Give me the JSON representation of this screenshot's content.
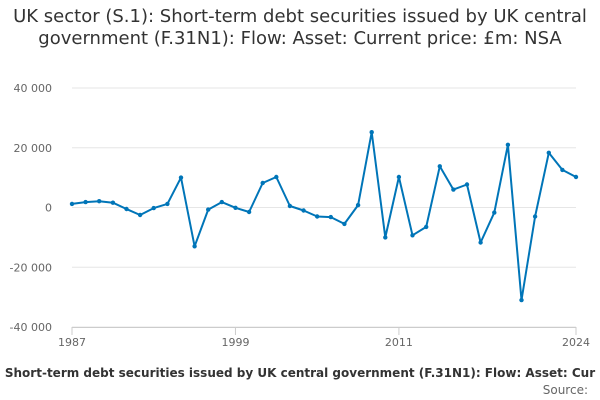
{
  "chart_data": {
    "type": "line",
    "title": "UK sector (S.1): Short-term debt securities issued by UK central government (F.31N1): Flow: Asset: Current price: £m: NSA",
    "xlabel": "",
    "ylabel": "",
    "xlim": [
      1987,
      2024
    ],
    "ylim": [
      -40000,
      40000
    ],
    "y_ticks": [
      40000,
      20000,
      0,
      -20000,
      -40000
    ],
    "y_tick_labels": [
      "40 000",
      "20 000",
      "0",
      "-20 000",
      "-40 000"
    ],
    "x_ticks": [
      1987,
      1999,
      2011,
      2024
    ],
    "x_tick_labels": [
      "1987",
      "1999",
      "2011",
      "2024"
    ],
    "grid": true,
    "legend_position": "bottom",
    "legend_text": "Short-term debt securities issued by UK central government (F.31N1): Flow: Asset: Cur",
    "source_text": "Source:",
    "series": [
      {
        "color": "#0075b8",
        "x": [
          1987,
          1988,
          1989,
          1990,
          1991,
          1992,
          1993,
          1994,
          1995,
          1996,
          1997,
          1998,
          1999,
          2000,
          2001,
          2002,
          2003,
          2004,
          2005,
          2006,
          2007,
          2008,
          2009,
          2010,
          2011,
          2012,
          2013,
          2014,
          2015,
          2016,
          2017,
          2018,
          2019,
          2020,
          2021,
          2022,
          2023,
          2024
        ],
        "values": [
          1200,
          1800,
          2100,
          1600,
          -500,
          -2500,
          -200,
          1200,
          10000,
          -13000,
          -700,
          1800,
          -100,
          -1500,
          8200,
          10200,
          500,
          -1000,
          -3000,
          -3200,
          -5500,
          800,
          25200,
          -10000,
          10200,
          -9300,
          -6500,
          13800,
          6000,
          7700,
          -11700,
          -1700,
          21000,
          -31000,
          -3000,
          18300,
          12600,
          10200
        ]
      }
    ]
  }
}
